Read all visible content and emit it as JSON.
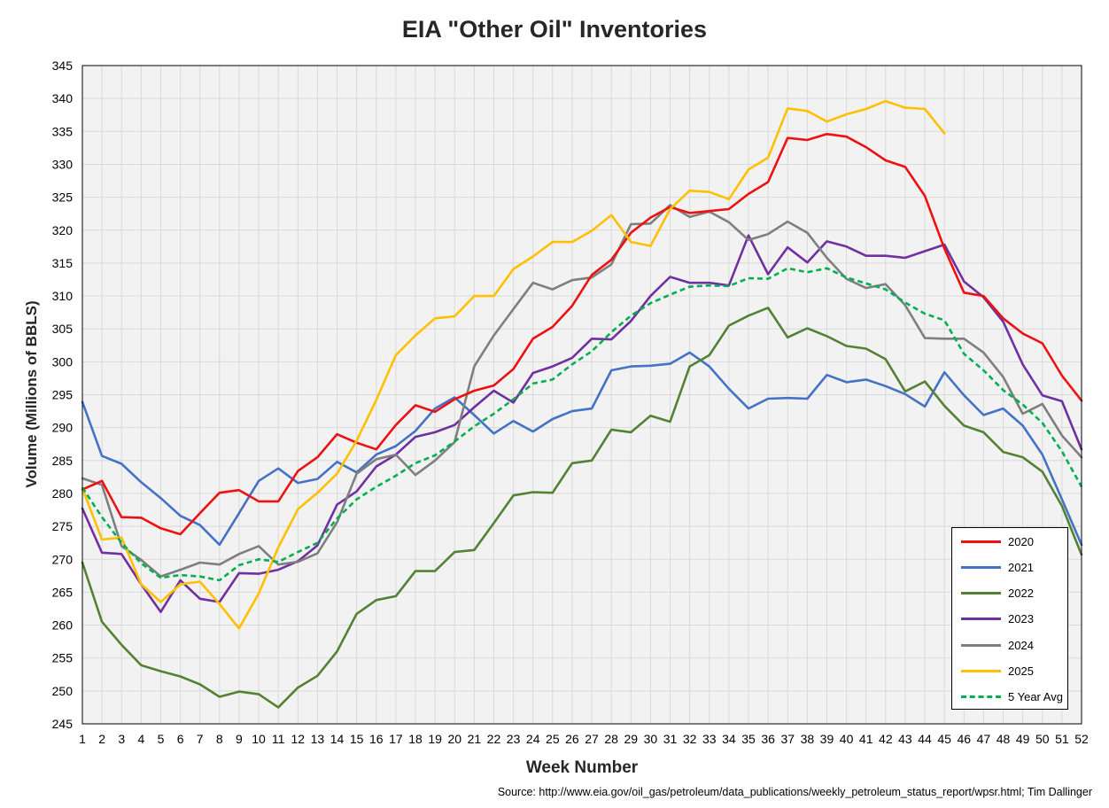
{
  "chart_data": {
    "type": "line",
    "title": "EIA \"Other Oil\" Inventories",
    "xlabel": "Week Number",
    "ylabel": "Volume (Millions of BBLS)",
    "source": "Source: http://www.eia.gov/oil_gas/petroleum/data_publications/weekly_petroleum_status_report/wpsr.html; Tim Dallinger",
    "ylim": [
      245,
      345
    ],
    "ystep": 5,
    "xlim": [
      1,
      52
    ],
    "grid": true,
    "legend_position": "bottom-right",
    "series": [
      {
        "name": "2020",
        "color": "#ee1111",
        "dash": false,
        "values": [
          280.6,
          281.9,
          276.4,
          276.3,
          274.7,
          273.8,
          277.0,
          280.1,
          280.5,
          278.8,
          278.8,
          283.4,
          285.5,
          289.0,
          287.7,
          286.7,
          290.4,
          293.4,
          292.4,
          294.3,
          295.6,
          296.4,
          298.9,
          303.5,
          305.3,
          308.5,
          313.2,
          315.5,
          319.6,
          321.9,
          323.5,
          322.6,
          322.9,
          323.2,
          325.5,
          327.3,
          334.0,
          333.7,
          334.6,
          334.2,
          332.6,
          330.6,
          329.6,
          325.2,
          317.2,
          310.5,
          310.0,
          306.6,
          304.3,
          302.8,
          297.9,
          294.1
        ]
      },
      {
        "name": "2021",
        "color": "#4472c4",
        "dash": false,
        "values": [
          293.9,
          285.7,
          284.5,
          281.7,
          279.3,
          276.6,
          275.2,
          272.2,
          277.0,
          281.9,
          283.8,
          281.6,
          282.2,
          284.8,
          283.2,
          285.9,
          287.2,
          289.5,
          292.9,
          294.6,
          291.9,
          289.1,
          291.0,
          289.4,
          291.3,
          292.5,
          292.9,
          298.7,
          299.3,
          299.4,
          299.7,
          301.4,
          299.3,
          295.9,
          292.9,
          294.4,
          294.5,
          294.4,
          298.0,
          296.9,
          297.3,
          296.3,
          295.1,
          293.2,
          298.4,
          294.9,
          291.9,
          292.9,
          290.3,
          285.9,
          279.1,
          272.2
        ]
      },
      {
        "name": "2022",
        "color": "#548235",
        "dash": false,
        "values": [
          269.5,
          260.5,
          257.0,
          253.9,
          253.0,
          252.2,
          251.0,
          249.1,
          249.9,
          249.5,
          247.5,
          250.5,
          252.3,
          256.0,
          261.7,
          263.8,
          264.4,
          268.2,
          268.2,
          271.1,
          271.4,
          275.5,
          279.7,
          280.2,
          280.1,
          284.6,
          285.0,
          289.7,
          289.3,
          291.8,
          290.9,
          299.3,
          301.0,
          305.5,
          307.0,
          308.2,
          303.7,
          305.1,
          303.9,
          302.4,
          302.0,
          300.4,
          295.5,
          297.0,
          293.3,
          290.3,
          289.3,
          286.3,
          285.5,
          283.3,
          278.1,
          270.7
        ]
      },
      {
        "name": "2023",
        "color": "#7030a0",
        "dash": false,
        "values": [
          277.7,
          271.0,
          270.8,
          266.2,
          262.0,
          266.8,
          264.0,
          263.5,
          267.9,
          267.8,
          268.4,
          269.7,
          272.1,
          278.3,
          280.3,
          284.1,
          285.9,
          288.6,
          289.3,
          290.4,
          293.1,
          295.6,
          293.8,
          298.3,
          299.3,
          300.6,
          303.5,
          303.4,
          306.2,
          310.0,
          312.9,
          312.0,
          312.0,
          311.6,
          319.2,
          313.3,
          317.4,
          315.1,
          318.3,
          317.5,
          316.1,
          316.1,
          315.8,
          316.8,
          317.8,
          312.2,
          309.8,
          306.1,
          299.6,
          294.9,
          294.0,
          286.7
        ]
      },
      {
        "name": "2024",
        "color": "#7f7f7f",
        "dash": false,
        "values": [
          282.3,
          281.3,
          272.0,
          269.9,
          267.4,
          268.4,
          269.5,
          269.2,
          270.8,
          272.0,
          269.2,
          269.6,
          270.9,
          275.6,
          283.0,
          285.2,
          285.9,
          282.8,
          285.0,
          287.8,
          299.3,
          304.0,
          308.0,
          312.0,
          311.0,
          312.4,
          312.8,
          314.8,
          320.9,
          321.0,
          323.8,
          322.0,
          322.8,
          321.2,
          318.5,
          319.4,
          321.3,
          319.6,
          315.8,
          312.6,
          311.2,
          311.8,
          308.6,
          303.6,
          303.5,
          303.5,
          301.4,
          297.7,
          292.1,
          293.6,
          288.8,
          285.5
        ]
      },
      {
        "name": "2025",
        "color": "#ffc000",
        "dash": false,
        "values": [
          280.8,
          273.0,
          273.3,
          266.2,
          263.5,
          266.2,
          266.6,
          263.2,
          259.5,
          264.8,
          271.8,
          277.6,
          280.1,
          283.0,
          288.0,
          294.2,
          301.0,
          304.0,
          306.6,
          306.9,
          310.0,
          310.0,
          314.1,
          316.0,
          318.2,
          318.2,
          319.9,
          322.3,
          318.2,
          317.6,
          323.2,
          326.0,
          325.8,
          324.7,
          329.2,
          331.0,
          338.5,
          338.1,
          336.5,
          337.6,
          338.4,
          339.6,
          338.6,
          338.4,
          334.7
        ]
      },
      {
        "name": "5 Year Avg",
        "color": "#00b050",
        "dash": true,
        "values": [
          280.9,
          276.4,
          272.5,
          269.4,
          267.2,
          267.6,
          267.4,
          266.8,
          269.1,
          270.0,
          269.6,
          271.1,
          272.5,
          276.2,
          279.1,
          281.0,
          282.7,
          284.6,
          285.8,
          287.9,
          290.2,
          292.1,
          294.3,
          296.7,
          297.3,
          299.6,
          301.6,
          304.5,
          307.0,
          308.9,
          310.2,
          311.4,
          311.6,
          311.5,
          312.7,
          312.6,
          314.2,
          313.6,
          314.2,
          312.8,
          311.9,
          311.0,
          309.0,
          307.3,
          306.3,
          301.2,
          298.7,
          295.7,
          293.5,
          290.7,
          286.4,
          281.0
        ]
      }
    ]
  }
}
